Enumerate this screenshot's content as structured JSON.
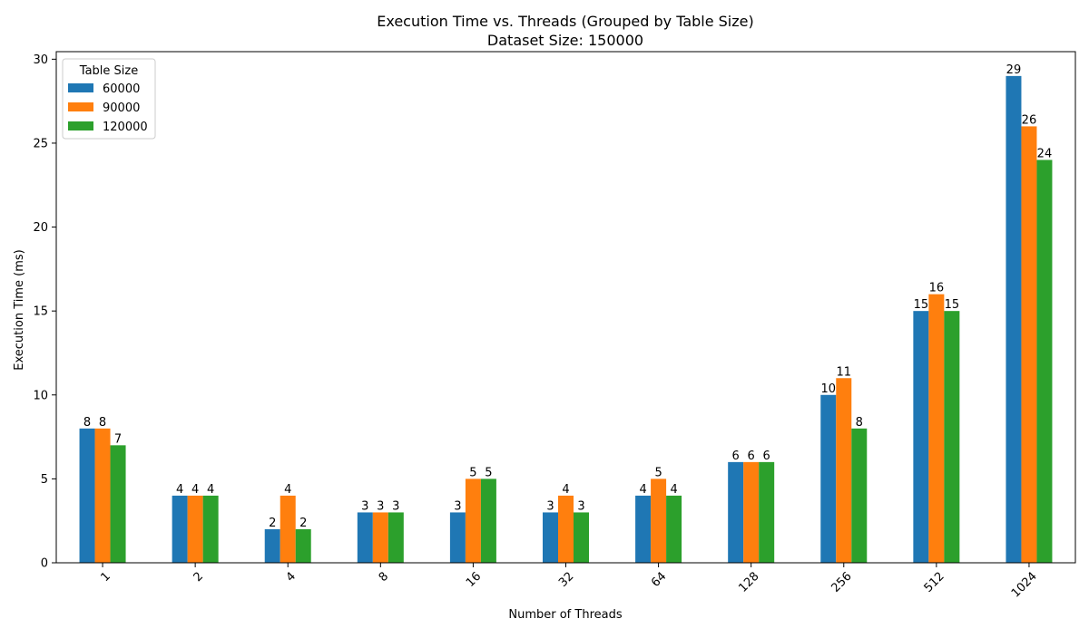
{
  "chart_data": {
    "type": "bar",
    "title": "Execution Time vs. Threads (Grouped by Table Size)",
    "subtitle": "Dataset Size: 150000",
    "xlabel": "Number of Threads",
    "ylabel": "Execution Time (ms)",
    "categories": [
      "1",
      "2",
      "4",
      "8",
      "16",
      "32",
      "64",
      "128",
      "256",
      "512",
      "1024"
    ],
    "series": [
      {
        "name": "60000",
        "color": "#1f77b4",
        "values": [
          8,
          4,
          2,
          3,
          3,
          3,
          4,
          6,
          10,
          15,
          29
        ]
      },
      {
        "name": "90000",
        "color": "#ff7f0e",
        "values": [
          8,
          4,
          4,
          3,
          5,
          4,
          5,
          6,
          11,
          16,
          26
        ]
      },
      {
        "name": "120000",
        "color": "#2ca02c",
        "values": [
          7,
          4,
          2,
          3,
          5,
          3,
          4,
          6,
          8,
          15,
          24
        ]
      }
    ],
    "ylim": [
      0,
      30.45
    ],
    "yticks": [
      0,
      5,
      10,
      15,
      20,
      25,
      30
    ],
    "legend_title": "Table Size",
    "legend_position": "top-left",
    "grid": false,
    "x_tick_rotation": 45
  }
}
